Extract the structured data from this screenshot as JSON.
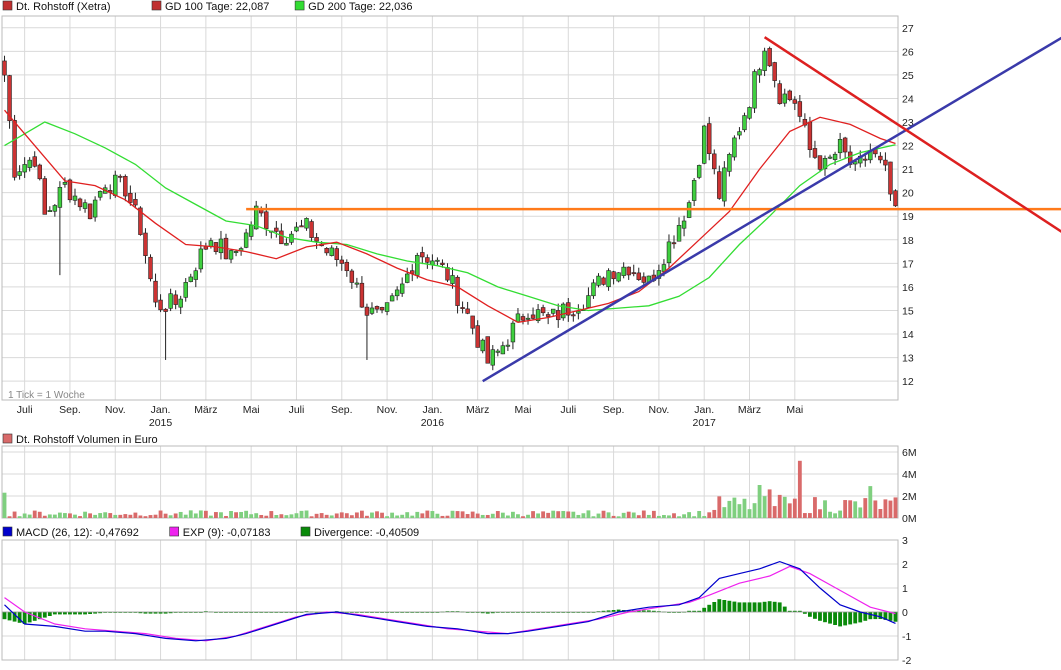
{
  "colors": {
    "up": "#3fcf3f",
    "down": "#cc3333",
    "gd100": "#e02020",
    "gd200": "#33dd33",
    "support": "#3a3aaa",
    "resistance": "#dd2020",
    "horizontal": "#ff7a1a",
    "macd": "#0000cc",
    "exp": "#ee22ee",
    "divergence": "#0a8a0a",
    "volume_up": "#7fcf7f",
    "volume_down": "#d96a6a",
    "grid": "#d9d9d9"
  },
  "price_panel": {
    "legend": [
      {
        "label": "Dt. Rohstoff (Xetra)",
        "color": "#c03030"
      },
      {
        "label": "GD 100 Tage: 22,087",
        "color": "#c03030"
      },
      {
        "label": "GD 200 Tage: 22,036",
        "color": "#33dd33"
      }
    ],
    "note": "1 Tick = 1 Woche",
    "x_months": [
      "Juli",
      "Sep.",
      "Nov.",
      "Jan.",
      "März",
      "Mai",
      "Juli",
      "Sep.",
      "Nov.",
      "Jan.",
      "März",
      "Mai",
      "Juli",
      "Sep.",
      "Nov.",
      "Jan.",
      "März",
      "Mai"
    ],
    "x_years": [
      "2015",
      "2016",
      "2017"
    ]
  },
  "volume_panel": {
    "legend": [
      {
        "label": "Dt. Rohstoff Volumen in Euro",
        "color": "#d96a6a"
      }
    ]
  },
  "macd_panel": {
    "legend": [
      {
        "label": "MACD (26, 12): -0,47692",
        "color": "#0000cc"
      },
      {
        "label": "EXP (9): -0,07183",
        "color": "#ee22ee"
      },
      {
        "label": "Divergence: -0,40509",
        "color": "#0a8a0a"
      }
    ]
  },
  "chart_data": [
    {
      "type": "candlestick",
      "series_name": "Dt. Rohstoff (Xetra)",
      "x": [
        "Juli 2014",
        "Sep. 2014",
        "Nov. 2014",
        "Jan. 2015",
        "März 2015",
        "Mai 2015",
        "Juli 2015",
        "Sep. 2015",
        "Nov. 2015",
        "Jan. 2016",
        "März 2016",
        "Mai 2016",
        "Juli 2016",
        "Sep. 2016",
        "Nov. 2016",
        "Jan. 2017",
        "März 2017",
        "Mai 2017"
      ],
      "ylim": [
        11.2,
        27.5
      ],
      "yticks": [
        12,
        13,
        14,
        15,
        16,
        17,
        18,
        19,
        20,
        21,
        22,
        23,
        24,
        25,
        26,
        27
      ],
      "close_path": [
        [
          0,
          25.0
        ],
        [
          2,
          21.0
        ],
        [
          6,
          21.5
        ],
        [
          8,
          19.0
        ],
        [
          12,
          20.3
        ],
        [
          17,
          19.2
        ],
        [
          20,
          20.5
        ],
        [
          24,
          20.2
        ],
        [
          27,
          18.5
        ],
        [
          30,
          15.2
        ],
        [
          34,
          15.3
        ],
        [
          38,
          17.0
        ],
        [
          41,
          18.1
        ],
        [
          45,
          17.2
        ],
        [
          48,
          18.2
        ],
        [
          50,
          19.2
        ],
        [
          55,
          18.2
        ],
        [
          60,
          18.5
        ],
        [
          64,
          17.5
        ],
        [
          68,
          16.9
        ],
        [
          72,
          15.0
        ],
        [
          75,
          14.6
        ],
        [
          79,
          16.0
        ],
        [
          82,
          17.5
        ],
        [
          85,
          17.2
        ],
        [
          88,
          16.5
        ],
        [
          92,
          14.8
        ],
        [
          96,
          12.8
        ],
        [
          98,
          13.2
        ],
        [
          101,
          14.2
        ],
        [
          104,
          15.1
        ],
        [
          108,
          14.6
        ],
        [
          112,
          15.1
        ],
        [
          116,
          15.6
        ],
        [
          120,
          16.7
        ],
        [
          124,
          16.9
        ],
        [
          128,
          16.2
        ],
        [
          132,
          17.8
        ],
        [
          136,
          19.6
        ],
        [
          139,
          22.6
        ],
        [
          142,
          19.9
        ],
        [
          145,
          22.2
        ],
        [
          148,
          24.0
        ],
        [
          151,
          26.4
        ],
        [
          154,
          24.2
        ],
        [
          157,
          23.9
        ],
        [
          160,
          21.8
        ],
        [
          163,
          21.1
        ],
        [
          166,
          21.9
        ],
        [
          169,
          20.9
        ],
        [
          172,
          21.8
        ],
        [
          175,
          20.8
        ],
        [
          177,
          19.0
        ]
      ],
      "gd100": [
        [
          0,
          23.5
        ],
        [
          6,
          22.0
        ],
        [
          12,
          20.5
        ],
        [
          18,
          20.3
        ],
        [
          24,
          19.7
        ],
        [
          30,
          18.7
        ],
        [
          36,
          17.8
        ],
        [
          42,
          17.7
        ],
        [
          48,
          17.5
        ],
        [
          54,
          17.2
        ],
        [
          60,
          17.7
        ],
        [
          66,
          17.9
        ],
        [
          72,
          17.4
        ],
        [
          78,
          16.8
        ],
        [
          84,
          16.3
        ],
        [
          90,
          16.0
        ],
        [
          96,
          15.2
        ],
        [
          102,
          14.5
        ],
        [
          108,
          14.7
        ],
        [
          114,
          15.0
        ],
        [
          120,
          15.3
        ],
        [
          126,
          15.8
        ],
        [
          132,
          16.8
        ],
        [
          138,
          18.0
        ],
        [
          144,
          19.2
        ],
        [
          150,
          21.0
        ],
        [
          156,
          22.6
        ],
        [
          162,
          23.2
        ],
        [
          168,
          22.9
        ],
        [
          174,
          22.3
        ],
        [
          177,
          22.087
        ]
      ],
      "gd200": [
        [
          0,
          22.0
        ],
        [
          8,
          23.0
        ],
        [
          14,
          22.5
        ],
        [
          20,
          21.9
        ],
        [
          26,
          21.2
        ],
        [
          32,
          20.2
        ],
        [
          38,
          19.5
        ],
        [
          44,
          18.8
        ],
        [
          50,
          18.6
        ],
        [
          56,
          18.1
        ],
        [
          62,
          17.9
        ],
        [
          68,
          17.8
        ],
        [
          74,
          17.4
        ],
        [
          80,
          17.1
        ],
        [
          86,
          16.9
        ],
        [
          92,
          16.6
        ],
        [
          98,
          16.0
        ],
        [
          104,
          15.6
        ],
        [
          110,
          15.2
        ],
        [
          116,
          15.0
        ],
        [
          122,
          15.1
        ],
        [
          128,
          15.2
        ],
        [
          134,
          15.6
        ],
        [
          140,
          16.4
        ],
        [
          146,
          17.8
        ],
        [
          152,
          19.0
        ],
        [
          158,
          20.3
        ],
        [
          164,
          21.2
        ],
        [
          170,
          21.7
        ],
        [
          177,
          22.036
        ]
      ],
      "trendlines": [
        {
          "name": "support",
          "from": [
            95,
            12.0
          ],
          "to": [
            211,
            26.7
          ]
        },
        {
          "name": "resistance",
          "from": [
            151,
            26.6
          ],
          "to": [
            211,
            18.2
          ]
        },
        {
          "name": "horizontal",
          "from": [
            48,
            19.3
          ],
          "to": [
            211,
            19.3
          ]
        }
      ]
    },
    {
      "type": "bar",
      "series_name": "Dt. Rohstoff Volumen in Euro",
      "yticks": [
        "0M",
        "2M",
        "4M",
        "6M"
      ],
      "ylim": [
        0,
        6
      ],
      "note": "weekly volume in million EUR",
      "peaks": [
        [
          0,
          2.3
        ],
        [
          158,
          5.2
        ],
        [
          172,
          2.9
        ],
        [
          150,
          3.0
        ],
        [
          152,
          2.6
        ],
        [
          154,
          2.1
        ]
      ]
    },
    {
      "type": "line",
      "series": [
        {
          "name": "MACD (26, 12): -0,47692"
        },
        {
          "name": "EXP (9): -0,07183"
        },
        {
          "name": "Divergence: -0,40509"
        }
      ],
      "yticks": [
        3,
        2,
        1,
        0,
        -1,
        -2
      ],
      "ylim": [
        -2,
        3
      ],
      "macd": [
        [
          0,
          0.3
        ],
        [
          4,
          -0.5
        ],
        [
          10,
          -0.6
        ],
        [
          16,
          -0.8
        ],
        [
          20,
          -0.8
        ],
        [
          26,
          -0.9
        ],
        [
          32,
          -1.1
        ],
        [
          38,
          -1.2
        ],
        [
          44,
          -1.1
        ],
        [
          48,
          -0.9
        ],
        [
          54,
          -0.5
        ],
        [
          60,
          -0.1
        ],
        [
          66,
          0.0
        ],
        [
          72,
          -0.2
        ],
        [
          78,
          -0.4
        ],
        [
          84,
          -0.6
        ],
        [
          90,
          -0.7
        ],
        [
          96,
          -0.9
        ],
        [
          100,
          -0.9
        ],
        [
          104,
          -0.8
        ],
        [
          110,
          -0.6
        ],
        [
          116,
          -0.4
        ],
        [
          122,
          0.0
        ],
        [
          128,
          0.2
        ],
        [
          134,
          0.3
        ],
        [
          138,
          0.6
        ],
        [
          142,
          1.4
        ],
        [
          146,
          1.6
        ],
        [
          150,
          1.8
        ],
        [
          154,
          2.1
        ],
        [
          158,
          1.8
        ],
        [
          162,
          1.0
        ],
        [
          166,
          0.3
        ],
        [
          170,
          0.0
        ],
        [
          174,
          -0.2
        ],
        [
          177,
          -0.47692
        ]
      ],
      "exp": [
        [
          0,
          0.6
        ],
        [
          4,
          0.0
        ],
        [
          10,
          -0.5
        ],
        [
          16,
          -0.7
        ],
        [
          22,
          -0.8
        ],
        [
          28,
          -0.9
        ],
        [
          34,
          -1.1
        ],
        [
          40,
          -1.2
        ],
        [
          46,
          -1.0
        ],
        [
          52,
          -0.6
        ],
        [
          58,
          -0.2
        ],
        [
          64,
          0.0
        ],
        [
          70,
          -0.1
        ],
        [
          76,
          -0.3
        ],
        [
          82,
          -0.5
        ],
        [
          88,
          -0.7
        ],
        [
          94,
          -0.8
        ],
        [
          100,
          -0.9
        ],
        [
          106,
          -0.7
        ],
        [
          112,
          -0.5
        ],
        [
          118,
          -0.3
        ],
        [
          124,
          0.0
        ],
        [
          130,
          0.2
        ],
        [
          136,
          0.4
        ],
        [
          140,
          0.7
        ],
        [
          146,
          1.2
        ],
        [
          152,
          1.5
        ],
        [
          156,
          1.9
        ],
        [
          160,
          1.6
        ],
        [
          166,
          0.9
        ],
        [
          172,
          0.2
        ],
        [
          177,
          -0.07183
        ]
      ]
    }
  ]
}
